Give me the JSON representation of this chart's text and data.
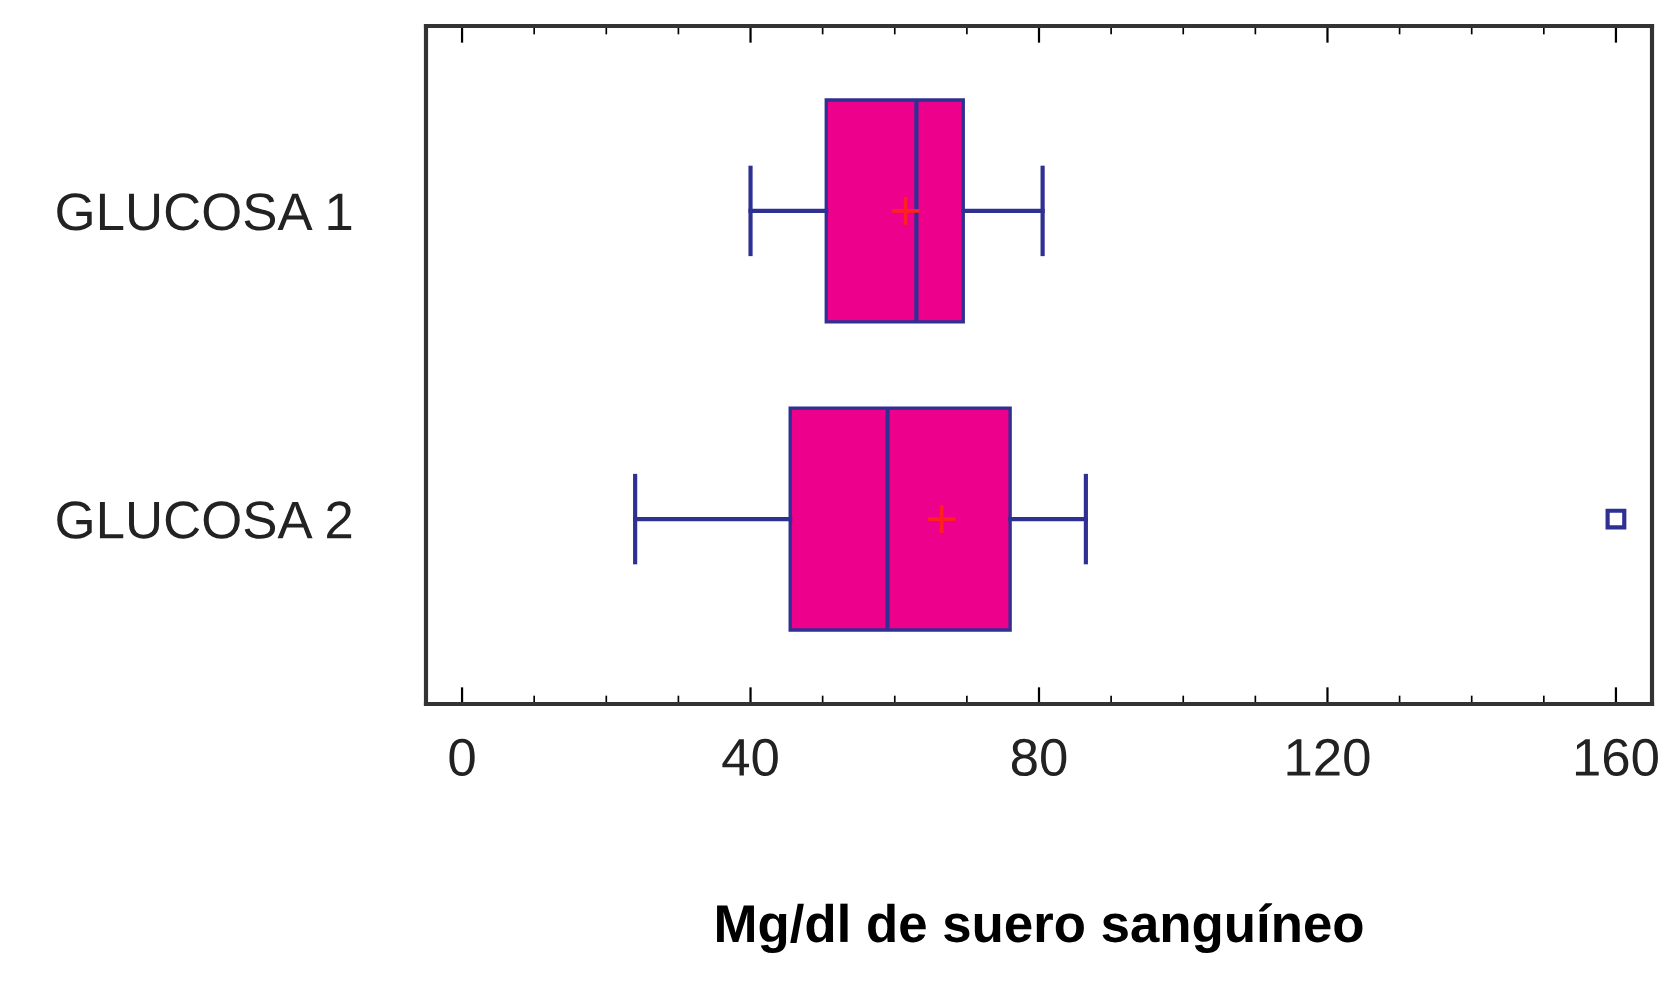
{
  "chart_data": {
    "type": "box",
    "orientation": "horizontal",
    "xlabel": "Mg/dl de suero sanguíneo",
    "categories": [
      "GLUCOSA 1",
      "GLUCOSA 2"
    ],
    "color": "#ec008c",
    "boxes": [
      {
        "low": 40,
        "q1": 50.5,
        "median": 63,
        "q3": 69.5,
        "high": 80.5,
        "mean": 61.5
      },
      {
        "low": 24,
        "q1": 45.5,
        "median": 59,
        "q3": 76,
        "high": 86.5,
        "mean": 66.5,
        "outliers": [
          160
        ]
      }
    ],
    "xlim": [
      -5,
      165
    ],
    "xticks": [
      0,
      40,
      80,
      120,
      160
    ],
    "grid": false,
    "marker": "square"
  }
}
